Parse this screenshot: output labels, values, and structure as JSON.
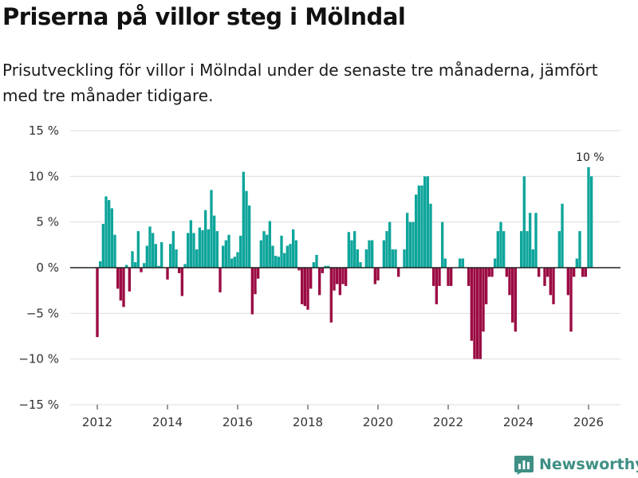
{
  "title": "Priserna på villor steg i Mölndal",
  "subtitle": "Prisutveckling för villor i Mölndal under de senaste tre månaderna, jämfört med tre månader tidigare.",
  "brand": {
    "name": "Newsworthy",
    "color": "#3f8f85"
  },
  "colors": {
    "positive": "#0ea59b",
    "negative": "#9b0b43",
    "grid": "#dddddd",
    "zero_line": "#222222",
    "text": "#333333"
  },
  "chart_data": {
    "type": "bar",
    "title": "Priserna på villor steg i Mölndal",
    "xlabel": "",
    "ylabel": "",
    "ylim": [
      -15,
      15
    ],
    "grid": true,
    "yticks": [
      15,
      10,
      5,
      0,
      -5,
      -10,
      -15
    ],
    "ytick_labels": [
      "15 %",
      "10 %",
      "5 %",
      "0 %",
      "−5 %",
      "−10 %",
      "−15 %"
    ],
    "xticks": [
      2012,
      2014,
      2016,
      2018,
      2020,
      2022,
      2024,
      2026
    ],
    "xtick_labels": [
      "2012",
      "2014",
      "2016",
      "2018",
      "2020",
      "2022",
      "2024",
      "2026"
    ],
    "series_start": {
      "year": 2012,
      "month": 1
    },
    "annotation": {
      "label": "10 %",
      "target": "last-large-bar"
    },
    "values": [
      -7.6,
      0.7,
      4.8,
      7.8,
      7.4,
      6.5,
      3.6,
      -2.3,
      -3.6,
      -4.3,
      0.3,
      -2.6,
      1.8,
      0.6,
      4.0,
      -0.5,
      0.5,
      2.4,
      4.5,
      3.8,
      2.6,
      0.2,
      2.8,
      0.0,
      -1.3,
      2.6,
      4.0,
      2.0,
      -0.6,
      -3.1,
      0.4,
      3.8,
      5.2,
      3.8,
      2.0,
      4.4,
      4.1,
      6.3,
      4.2,
      8.5,
      5.7,
      4.0,
      -2.7,
      2.4,
      3.0,
      3.6,
      1.0,
      1.2,
      1.7,
      3.5,
      10.5,
      8.4,
      6.8,
      -5.1,
      -2.9,
      -1.2,
      3.0,
      4.0,
      3.6,
      5.1,
      2.4,
      1.3,
      1.2,
      3.5,
      1.6,
      2.4,
      2.6,
      4.2,
      3.0,
      -0.3,
      -4.0,
      -4.2,
      -4.6,
      -2.3,
      0.6,
      1.4,
      -3.0,
      -0.6,
      0.2,
      0.2,
      -6.0,
      -2.5,
      -1.8,
      -3.0,
      -1.8,
      -2.0,
      3.9,
      3.0,
      4.0,
      2.0,
      0.6,
      0.0,
      2.0,
      3.0,
      3.0,
      -1.8,
      -1.4,
      0.0,
      3.0,
      4.0,
      5.0,
      2.0,
      2.0,
      -1.0,
      0.0,
      2.0,
      6.0,
      5.0,
      5.0,
      8.0,
      9.0,
      9.0,
      10.0,
      10.0,
      7.0,
      -2.0,
      -4.0,
      -2.0,
      5.0,
      1.0,
      -2.0,
      -2.0,
      0.0,
      0.0,
      1.0,
      1.0,
      0.0,
      -2.0,
      -8.0,
      -10.0,
      -10.0,
      -10.0,
      -7.0,
      -4.0,
      -1.0,
      -1.0,
      1.0,
      4.0,
      5.0,
      4.0,
      -1.0,
      -3.0,
      -6.0,
      -7.0,
      0.0,
      4.0,
      10.0,
      4.0,
      6.0,
      2.0,
      6.0,
      -1.0,
      0.0,
      -2.0,
      -1.0,
      -3.0,
      -4.0,
      0.0,
      4.0,
      7.0,
      0.0,
      -3.0,
      -7.0,
      -1.0,
      1.0,
      4.0,
      -1.0,
      -1.0,
      11.0,
      10.0
    ]
  }
}
